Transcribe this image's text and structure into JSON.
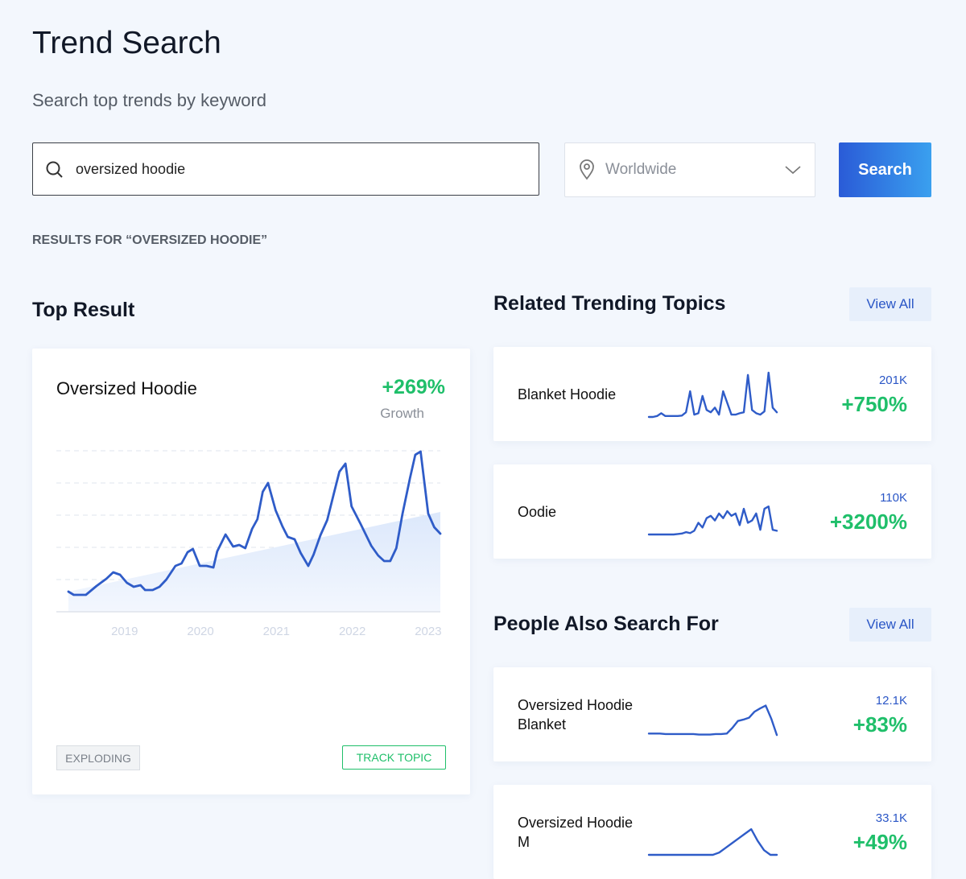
{
  "header": {
    "title": "Trend Search",
    "subtitle": "Search top trends by keyword"
  },
  "search": {
    "query": "oversized hoodie",
    "location": "Worldwide",
    "button": "Search"
  },
  "results_label": "RESULTS FOR “OVERSIZED HOODIE”",
  "top_result": {
    "heading": "Top Result",
    "card": {
      "name": "Oversized Hoodie",
      "growth": "+269%",
      "growth_label": "Growth",
      "badge": "EXPLODING",
      "action": "TRACK TOPIC",
      "chart": {
        "type": "line",
        "color": "#2f5cc8",
        "xlim": [
          2018.26,
          2023.16
        ],
        "xticks": [
          2019,
          2020,
          2021,
          2022,
          2023
        ],
        "ylim": [
          0,
          100
        ],
        "yticks": [
          20,
          40,
          60,
          80,
          100
        ],
        "grid": true,
        "x": [
          2018.26,
          2018.33,
          2018.49,
          2018.63,
          2018.76,
          2018.85,
          2018.94,
          2019.03,
          2019.12,
          2019.21,
          2019.27,
          2019.37,
          2019.46,
          2019.55,
          2019.67,
          2019.75,
          2019.83,
          2019.9,
          2019.99,
          2020.08,
          2020.17,
          2020.22,
          2020.33,
          2020.43,
          2020.51,
          2020.59,
          2020.68,
          2020.75,
          2020.82,
          2020.89,
          2020.99,
          2021.08,
          2021.15,
          2021.24,
          2021.32,
          2021.42,
          2021.49,
          2021.58,
          2021.67,
          2021.76,
          2021.83,
          2021.91,
          2021.99,
          2022.11,
          2022.25,
          2022.34,
          2022.42,
          2022.5,
          2022.58,
          2022.66,
          2022.76,
          2022.83,
          2022.9,
          2023.0,
          2023.08,
          2023.16
        ],
        "values": [
          12.5,
          10.5,
          10.5,
          16,
          20.5,
          24.5,
          23,
          18,
          15.5,
          16.5,
          13.5,
          13.5,
          15.5,
          20,
          28.5,
          30,
          37,
          39,
          28.5,
          28.5,
          27.5,
          37.5,
          48,
          40.5,
          41.5,
          39.5,
          51.5,
          57.5,
          74.5,
          80,
          63,
          53,
          46.5,
          45,
          36.5,
          28.5,
          35.5,
          47.5,
          57,
          74,
          87,
          92,
          65.5,
          54.5,
          41,
          35,
          31.5,
          31.5,
          39.5,
          60.5,
          83,
          97.5,
          99.5,
          61,
          52.5,
          48.5
        ],
        "trend": {
          "x": [
            2018.26,
            2023.16
          ],
          "values": [
            12.5,
            62
          ]
        }
      }
    }
  },
  "related": {
    "heading": "Related Trending Topics",
    "view_all": "View All",
    "items": [
      {
        "name": "Blanket Hoodie",
        "volume": "201K",
        "growth": "+750%",
        "trend": {
          "type": "line",
          "ylim": [
            0,
            100
          ],
          "values": [
            0,
            0,
            2,
            8,
            2,
            2,
            2,
            2,
            3,
            10,
            55,
            5,
            8,
            45,
            15,
            10,
            20,
            5,
            55,
            30,
            5,
            5,
            8,
            10,
            90,
            15,
            8,
            5,
            12,
            95,
            20,
            10
          ]
        }
      },
      {
        "name": "Oodie",
        "volume": "110K",
        "growth": "+3200%",
        "trend": {
          "type": "line",
          "ylim": [
            0,
            100
          ],
          "values": [
            0,
            0,
            0,
            0,
            0,
            0,
            0,
            1,
            2,
            5,
            3,
            8,
            25,
            15,
            35,
            40,
            30,
            45,
            35,
            50,
            40,
            45,
            20,
            55,
            25,
            30,
            45,
            10,
            55,
            60,
            10,
            8
          ]
        }
      }
    ]
  },
  "people": {
    "heading": "People Also Search For",
    "view_all": "View All",
    "items": [
      {
        "name": "Oversized Hoodie Blanket",
        "volume": "12.1K",
        "growth": "+83%",
        "trend": {
          "type": "line",
          "ylim": [
            0,
            100
          ],
          "values": [
            8,
            8,
            8,
            7,
            7,
            7,
            7,
            7,
            7,
            6,
            6,
            6,
            7,
            7,
            8,
            20,
            35,
            38,
            42,
            55,
            62,
            68,
            40,
            5
          ]
        }
      },
      {
        "name": "Oversized Hoodie M",
        "volume": "33.1K",
        "growth": "+49%",
        "trend": {
          "type": "line",
          "ylim": [
            0,
            100
          ],
          "values": [
            0,
            0,
            0,
            0,
            0,
            0,
            0,
            0,
            0,
            0,
            0,
            5,
            15,
            25,
            35,
            45,
            55,
            30,
            10,
            0,
            0
          ]
        }
      }
    ]
  }
}
